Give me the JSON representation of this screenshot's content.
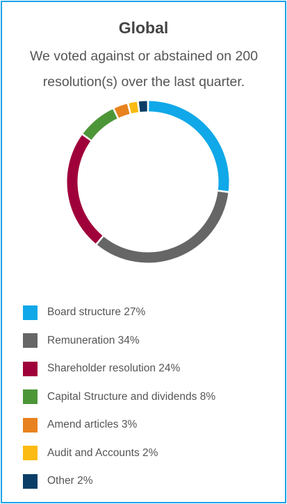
{
  "chart_data": {
    "type": "donut",
    "title": "Global",
    "subtitle": "We voted against or abstained on 200 resolution(s) over the last quarter.",
    "categories": [
      "Board structure",
      "Remuneration",
      "Shareholder resolution",
      "Capital Structure and dividends",
      "Amend articles",
      "Audit and Accounts",
      "Other"
    ],
    "values": [
      27,
      34,
      24,
      8,
      3,
      2,
      2
    ],
    "value_labels": [
      "27%",
      "34%",
      "24%",
      "8%",
      "3%",
      "2%",
      "2%"
    ],
    "colors": [
      "#10a8e8",
      "#666666",
      "#a0003a",
      "#4d9638",
      "#e8821e",
      "#fbbb12",
      "#0b3e66"
    ]
  }
}
